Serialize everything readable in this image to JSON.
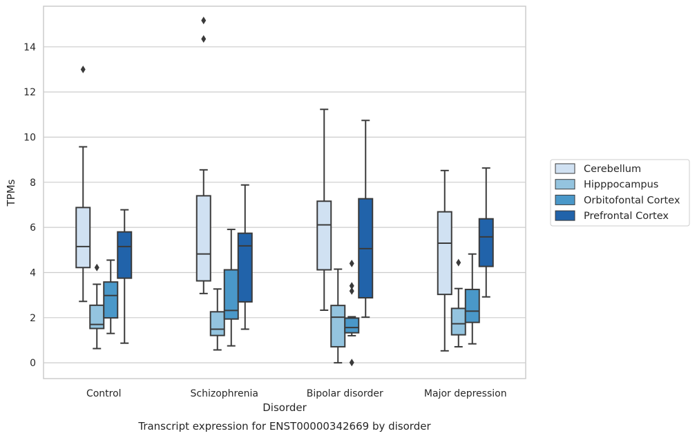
{
  "chart_data": {
    "type": "box",
    "xlabel": "Disorder",
    "ylabel": "TPMs",
    "caption": "Transcript expression for ENST00000342669 by disorder",
    "categories": [
      "Control",
      "Schizophrenia",
      "Bipolar disorder",
      "Major depression"
    ],
    "ylim": [
      -0.7,
      15.8
    ],
    "yticks": [
      0,
      2,
      4,
      6,
      8,
      10,
      12,
      14
    ],
    "grid": "horizontal",
    "legend_position": "right",
    "series": [
      {
        "name": "Cerebellum",
        "color": "#d0e1f2",
        "boxes": [
          {
            "whisker_low": 2.72,
            "q1": 4.22,
            "median": 5.15,
            "q3": 6.88,
            "whisker_high": 9.57,
            "outliers": [
              13.0
            ]
          },
          {
            "whisker_low": 3.07,
            "q1": 3.63,
            "median": 4.82,
            "q3": 7.4,
            "whisker_high": 8.55,
            "outliers": [
              14.35,
              15.17
            ]
          },
          {
            "whisker_low": 2.33,
            "q1": 4.12,
            "median": 6.11,
            "q3": 7.16,
            "whisker_high": 11.23,
            "outliers": []
          },
          {
            "whisker_low": 0.53,
            "q1": 3.03,
            "median": 5.3,
            "q3": 6.69,
            "whisker_high": 8.52,
            "outliers": []
          }
        ]
      },
      {
        "name": "Hipppocampus",
        "color": "#94c4df",
        "boxes": [
          {
            "whisker_low": 0.63,
            "q1": 1.52,
            "median": 1.7,
            "q3": 2.55,
            "whisker_high": 3.48,
            "outliers": [
              4.22
            ]
          },
          {
            "whisker_low": 0.57,
            "q1": 1.21,
            "median": 1.49,
            "q3": 2.26,
            "whisker_high": 3.27,
            "outliers": []
          },
          {
            "whisker_low": 0.0,
            "q1": 0.71,
            "median": 2.02,
            "q3": 2.54,
            "whisker_high": 4.15,
            "outliers": []
          },
          {
            "whisker_low": 0.71,
            "q1": 1.24,
            "median": 1.73,
            "q3": 2.41,
            "whisker_high": 3.29,
            "outliers": [
              4.44
            ]
          }
        ]
      },
      {
        "name": "Orbitofontal Cortex",
        "color": "#4a98c9",
        "boxes": [
          {
            "whisker_low": 1.3,
            "q1": 1.99,
            "median": 2.98,
            "q3": 3.58,
            "whisker_high": 4.55,
            "outliers": []
          },
          {
            "whisker_low": 0.75,
            "q1": 1.94,
            "median": 2.32,
            "q3": 4.12,
            "whisker_high": 5.91,
            "outliers": []
          },
          {
            "whisker_low": 1.2,
            "q1": 1.33,
            "median": 1.56,
            "q3": 1.98,
            "whisker_high": 2.04,
            "outliers": [
              0.01,
              3.18,
              3.41,
              4.4
            ]
          },
          {
            "whisker_low": 0.84,
            "q1": 1.79,
            "median": 2.29,
            "q3": 3.25,
            "whisker_high": 4.82,
            "outliers": []
          }
        ]
      },
      {
        "name": "Prefrontal Cortex",
        "color": "#2163aa",
        "boxes": [
          {
            "whisker_low": 0.87,
            "q1": 3.75,
            "median": 5.15,
            "q3": 5.8,
            "whisker_high": 6.78,
            "outliers": []
          },
          {
            "whisker_low": 1.49,
            "q1": 2.7,
            "median": 5.18,
            "q3": 5.74,
            "whisker_high": 7.88,
            "outliers": []
          },
          {
            "whisker_low": 2.02,
            "q1": 2.88,
            "median": 5.06,
            "q3": 7.27,
            "whisker_high": 10.74,
            "outliers": []
          },
          {
            "whisker_low": 2.92,
            "q1": 4.27,
            "median": 5.58,
            "q3": 6.38,
            "whisker_high": 8.63,
            "outliers": []
          }
        ]
      }
    ]
  }
}
